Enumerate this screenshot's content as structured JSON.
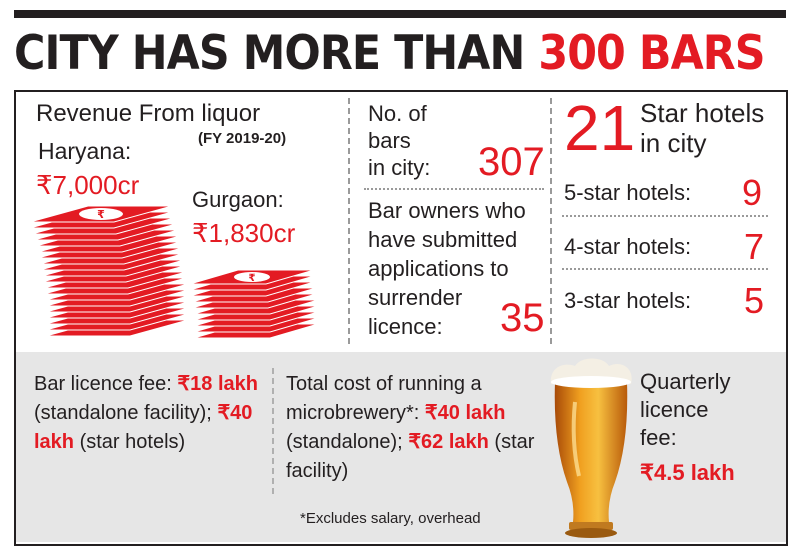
{
  "headline": {
    "part1": "CITY HAS MORE THAN ",
    "part2": "300 BARS"
  },
  "revenue": {
    "title": "Revenue From liquor",
    "period": "(FY 2019-20)",
    "haryana_label": "Haryana:",
    "haryana_value": "₹7,000cr",
    "gurgaon_label": "Gurgaon:",
    "gurgaon_value": "₹1,830cr"
  },
  "bars": {
    "count_label": [
      "No. of",
      "bars",
      "in city:"
    ],
    "count_value": "307",
    "surrender_label": [
      "Bar owners who",
      "have submitted",
      "applications to",
      "surrender",
      "licence:"
    ],
    "surrender_value": "35"
  },
  "hotels": {
    "total_value": "21",
    "total_label": [
      "Star hotels",
      "in city"
    ],
    "rows": [
      {
        "label": "5-star hotels:",
        "value": "9"
      },
      {
        "label": "4-star hotels:",
        "value": "7"
      },
      {
        "label": "3-star hotels:",
        "value": "5"
      }
    ]
  },
  "fees": {
    "bar_licence": {
      "label": "Bar licence fee:",
      "fee1": "₹18 lakh",
      "fee1_note": "(standalone facility);",
      "fee2": "₹40 lakh",
      "fee2_note": "(star hotels)"
    },
    "microbrewery": {
      "label": "Total cost of running a microbrewery*:",
      "fee1": "₹40 lakh",
      "fee1_note": "(standalone);",
      "fee2": "₹62 lakh",
      "fee2_note": "(star facility)"
    },
    "quarterly": {
      "label": [
        "Quarterly",
        "licence",
        "fee:"
      ],
      "value": "₹4.5 lakh"
    },
    "footnote": "*Excludes salary, overhead"
  },
  "icons": [
    "rupee-banknote-stack-icon",
    "beer-glass-icon"
  ],
  "colors": {
    "accent": "#e31b23",
    "text": "#231f20",
    "panel": "#e6e6e6"
  }
}
